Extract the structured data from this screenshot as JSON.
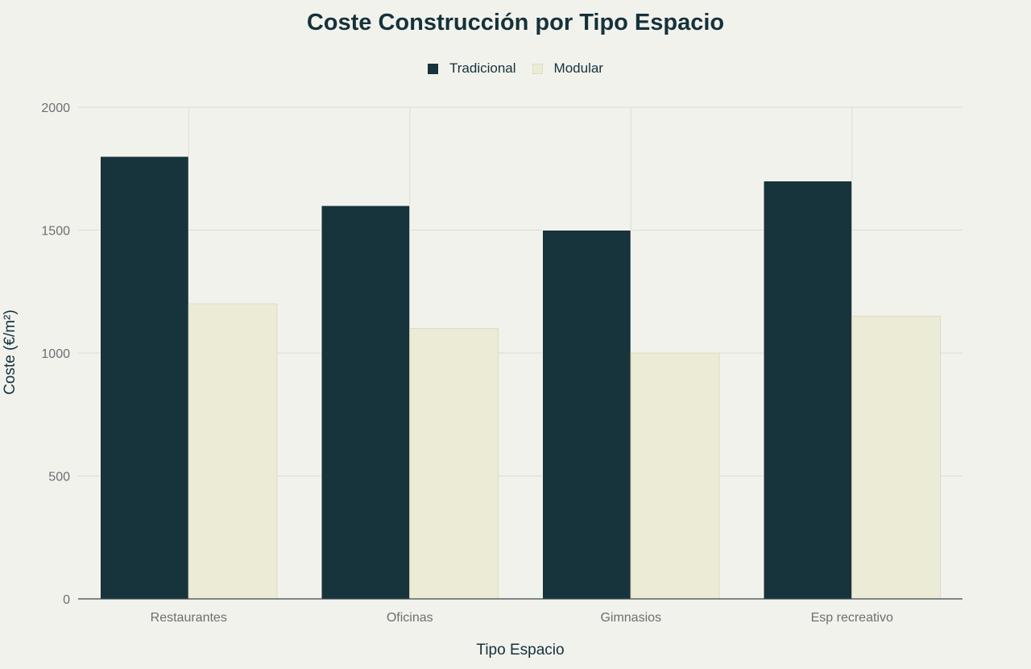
{
  "chart_data": {
    "type": "bar",
    "title": "Coste Construcción por Tipo Espacio",
    "xlabel": "Tipo Espacio",
    "ylabel": "Coste (€/m²)",
    "categories": [
      "Restaurantes",
      "Oficinas",
      "Gimnasios",
      "Esp recreativo"
    ],
    "series": [
      {
        "name": "Tradicional",
        "color": "#17333b",
        "values": [
          1800,
          1600,
          1500,
          1700
        ]
      },
      {
        "name": "Modular",
        "color": "#ecebd6",
        "values": [
          1200,
          1100,
          1000,
          1150
        ]
      }
    ],
    "ylim": [
      0,
      2000
    ],
    "yticks": [
      0,
      500,
      1000,
      1500,
      2000
    ],
    "grid": true,
    "legend_position": "top-center"
  },
  "legend": {
    "items": [
      {
        "label": "Tradicional",
        "color": "#17333b"
      },
      {
        "label": "Modular",
        "color": "#ecebd6"
      }
    ]
  }
}
